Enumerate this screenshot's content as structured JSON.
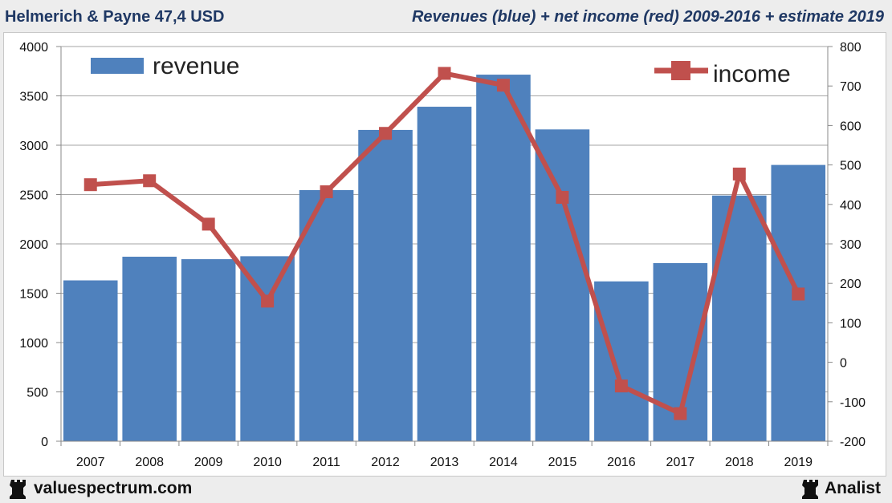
{
  "header": {
    "left_title": "Helmerich & Payne 47,4 USD",
    "right_title": "Revenues (blue) + net income (red) 2009-2016 + estimate 2019"
  },
  "footer": {
    "left_brand": "valuespectrum.com",
    "left_icon": "rook-icon",
    "right_brand": "Analist",
    "right_icon": "rook-icon"
  },
  "chart_data": {
    "type": "bar",
    "categories": [
      "2007",
      "2008",
      "2009",
      "2010",
      "2011",
      "2012",
      "2013",
      "2014",
      "2015",
      "2016",
      "2017",
      "2018",
      "2019"
    ],
    "series": [
      {
        "name": "revenue",
        "type": "bar",
        "axis": "left",
        "color": "#4f81bd",
        "values": [
          1630,
          1870,
          1845,
          1875,
          2545,
          3155,
          3390,
          3715,
          3160,
          1620,
          1805,
          2490,
          2800
        ]
      },
      {
        "name": "income",
        "type": "line",
        "axis": "right",
        "color": "#c0504d",
        "values": [
          450,
          460,
          350,
          155,
          432,
          580,
          732,
          702,
          418,
          -60,
          -130,
          477,
          173
        ]
      }
    ],
    "y_left": {
      "min": 0,
      "max": 4000,
      "ticks": [
        "0",
        "500",
        "1000",
        "1500",
        "2000",
        "2500",
        "3000",
        "3500",
        "4000"
      ]
    },
    "y_right": {
      "min": -200,
      "max": 800,
      "ticks": [
        "-200",
        "-100",
        "0",
        "100",
        "200",
        "300",
        "400",
        "500",
        "600",
        "700",
        "800"
      ]
    },
    "grid": true,
    "legend": [
      {
        "name": "revenue",
        "placement": "top-left"
      },
      {
        "name": "income",
        "placement": "top-right"
      }
    ]
  }
}
